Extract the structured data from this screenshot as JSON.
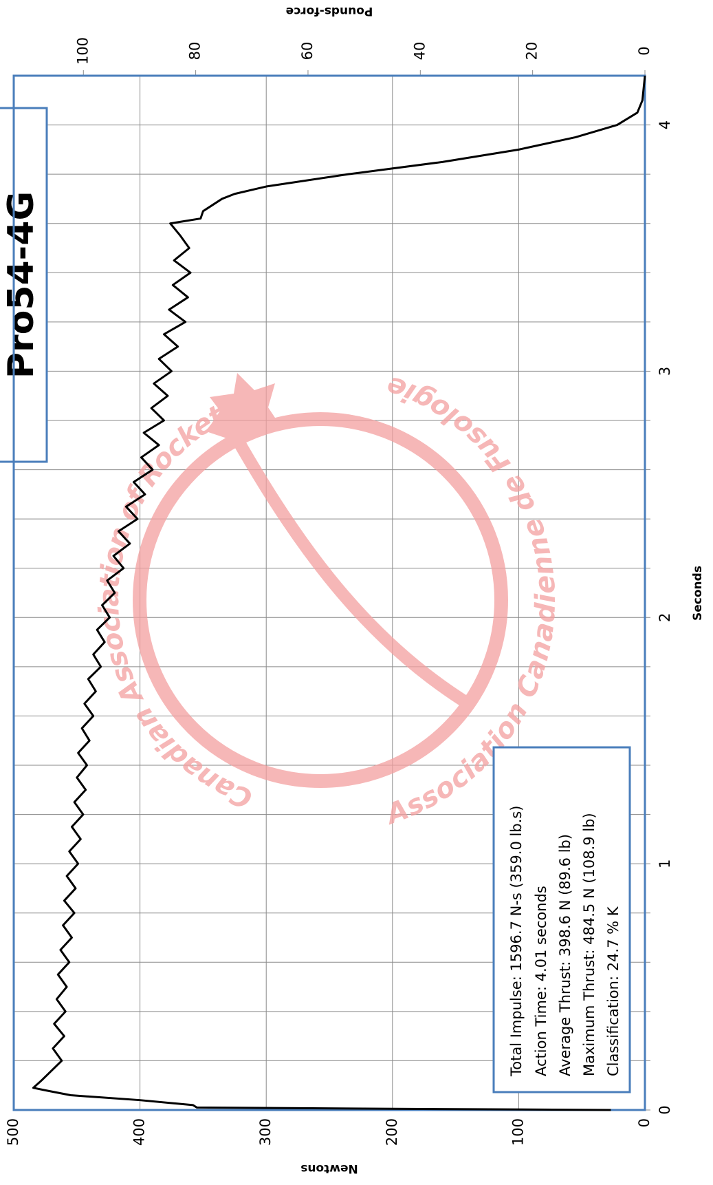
{
  "chart_data": {
    "type": "line",
    "title": "Pro54-4G",
    "xlabel": "Seconds",
    "ylabel": "Newtons",
    "y2label": "Pounds-force",
    "info": [
      "Total Impulse: 1596.7 N-s (359.0 lb.s)",
      "Action Time: 4.01 seconds",
      "Average Thrust: 398.6 N (89.6 lb)",
      "Maximum Thrust: 484.5 N (108.9 lb)",
      "Classification: 24.7 % K"
    ],
    "watermark": [
      "Canadian Association of Rocketry",
      "Association Canadienne de Fusologie"
    ],
    "color": "#000000",
    "x": [
      0,
      0.005,
      0.01,
      0.02,
      0.04,
      0.06,
      0.08,
      0.09,
      0.12,
      0.15,
      0.2,
      0.25,
      0.3,
      0.35,
      0.4,
      0.45,
      0.5,
      0.55,
      0.6,
      0.65,
      0.7,
      0.75,
      0.8,
      0.85,
      0.9,
      0.95,
      1.0,
      1.05,
      1.1,
      1.15,
      1.2,
      1.25,
      1.3,
      1.35,
      1.4,
      1.45,
      1.5,
      1.55,
      1.6,
      1.65,
      1.7,
      1.75,
      1.8,
      1.85,
      1.9,
      1.95,
      2.0,
      2.05,
      2.1,
      2.15,
      2.2,
      2.25,
      2.3,
      2.35,
      2.4,
      2.45,
      2.5,
      2.55,
      2.6,
      2.65,
      2.7,
      2.75,
      2.8,
      2.85,
      2.9,
      2.95,
      3.0,
      3.05,
      3.1,
      3.15,
      3.2,
      3.25,
      3.3,
      3.35,
      3.4,
      3.45,
      3.5,
      3.55,
      3.6,
      3.62,
      3.65,
      3.7,
      3.72,
      3.75,
      3.8,
      3.85,
      3.9,
      3.95,
      4.0,
      4.05,
      4.1,
      4.2
    ],
    "values": [
      27,
      200,
      355,
      358,
      400,
      455,
      475,
      484.5,
      478,
      472,
      462,
      469,
      460,
      468,
      459,
      466,
      458,
      465,
      456,
      463,
      454,
      461,
      452,
      460,
      451,
      458,
      449,
      456,
      447,
      454,
      445,
      452,
      443,
      450,
      442,
      449,
      440,
      446,
      437,
      444,
      435,
      441,
      431,
      437,
      428,
      434,
      424,
      430,
      420,
      426,
      413,
      421,
      408,
      417,
      402,
      411,
      396,
      405,
      390,
      399,
      385,
      397,
      381,
      391,
      378,
      389,
      375,
      385,
      370,
      381,
      364,
      377,
      362,
      374,
      360,
      373,
      361,
      368,
      376,
      352,
      350,
      335,
      325,
      300,
      235,
      160,
      100,
      55,
      22,
      6,
      2,
      0
    ],
    "xlim": [
      0,
      4.2
    ],
    "xticks": [
      0,
      1,
      2,
      3,
      4
    ],
    "xminor": [
      0.2,
      0.4,
      0.6,
      0.8,
      1.2,
      1.4,
      1.6,
      1.8,
      2.2,
      2.4,
      2.6,
      2.8,
      3.2,
      3.4,
      3.6,
      3.8
    ],
    "ylim": [
      0,
      500
    ],
    "yticks": [
      0,
      100,
      200,
      300,
      400,
      500
    ],
    "y2lim": [
      0,
      112.4
    ],
    "y2ticks": [
      0,
      20,
      40,
      60,
      80,
      100
    ],
    "grid": true
  }
}
